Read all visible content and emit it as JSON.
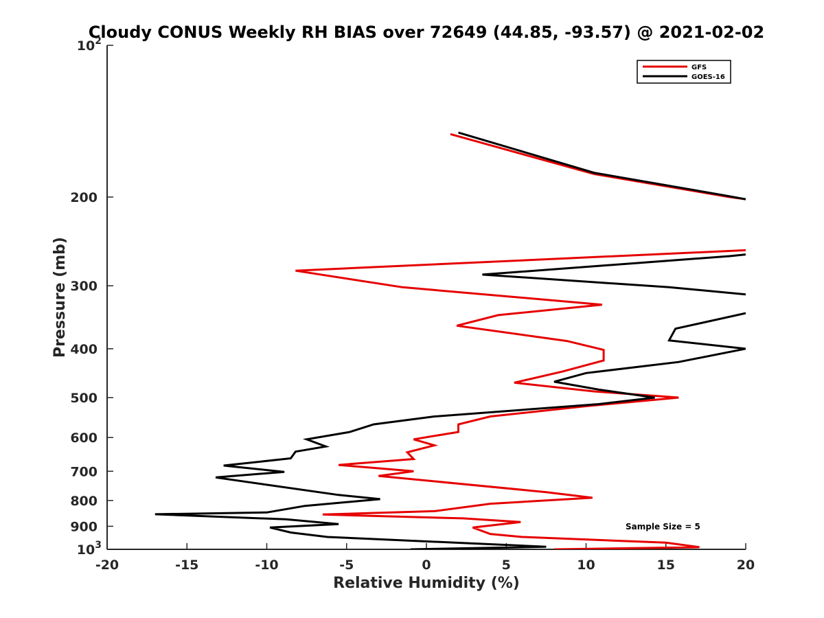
{
  "chart_data": {
    "type": "line",
    "title": "Cloudy CONUS Weekly RH BIAS over 72649 (44.85, -93.57) @ 2021-02-02",
    "xlabel": "Relative Humidity (%)",
    "ylabel": "Pressure (mb)",
    "xlim": [
      -20,
      20
    ],
    "ylim": [
      100,
      1000
    ],
    "y_scale": "log",
    "y_direction": "reversed",
    "grid": false,
    "legend_position": "top-right",
    "x_tick_labels": [
      "-20",
      "-15",
      "-10",
      "-5",
      "0",
      "5",
      "10",
      "15",
      "20"
    ],
    "y_tick_labels": [
      {
        "value": 100,
        "base": "10",
        "exp": "2"
      },
      {
        "value": 200,
        "label": "200"
      },
      {
        "value": 300,
        "label": "300"
      },
      {
        "value": 400,
        "label": "400"
      },
      {
        "value": 500,
        "label": "500"
      },
      {
        "value": 600,
        "label": "600"
      },
      {
        "value": 700,
        "label": "700"
      },
      {
        "value": 800,
        "label": "800"
      },
      {
        "value": 900,
        "label": "900"
      },
      {
        "value": 1000,
        "base": "10",
        "exp": "3"
      }
    ],
    "annotation": "Sample Size = 5",
    "series": [
      {
        "name": "GFS",
        "color": "#e60000",
        "points": [
          [
            1.5,
            150
          ],
          [
            10.5,
            180
          ],
          [
            19.0,
            200
          ],
          [
            20.0,
            202
          ],
          null,
          [
            20.0,
            255
          ],
          [
            -8.2,
            280
          ],
          [
            -1.5,
            302
          ],
          [
            11.0,
            327
          ],
          [
            4.5,
            343
          ],
          [
            1.9,
            360
          ],
          [
            8.8,
            386
          ],
          [
            11.1,
            402
          ],
          [
            11.1,
            422
          ],
          [
            8.5,
            444
          ],
          [
            5.5,
            467
          ],
          [
            10.5,
            486
          ],
          [
            15.8,
            500
          ],
          [
            10.0,
            520
          ],
          [
            4.0,
            545
          ],
          [
            2.0,
            565
          ],
          [
            2.0,
            585
          ],
          [
            -0.8,
            605
          ],
          [
            0.5,
            622
          ],
          [
            -1.2,
            642
          ],
          [
            -0.8,
            662
          ],
          [
            -5.5,
            680
          ],
          [
            -0.8,
            700
          ],
          [
            -3.0,
            715
          ],
          [
            7.5,
            770
          ],
          [
            10.4,
            790
          ],
          [
            4.0,
            812
          ],
          [
            0.5,
            840
          ],
          [
            -6.5,
            853
          ],
          [
            2.3,
            868
          ],
          [
            5.9,
            883
          ],
          [
            2.9,
            905
          ],
          [
            4.0,
            932
          ],
          [
            6.0,
            945
          ],
          [
            15.0,
            970
          ],
          [
            17.1,
            990
          ],
          [
            8.0,
            1000
          ]
        ]
      },
      {
        "name": "GOES-16",
        "color": "#000000",
        "points": [
          [
            2.0,
            149
          ],
          [
            10.5,
            179
          ],
          [
            18.5,
            198
          ],
          [
            20.0,
            202
          ],
          null,
          [
            20.0,
            260
          ],
          [
            19.0,
            262
          ],
          [
            3.5,
            285
          ],
          [
            15.2,
            302
          ],
          [
            20.0,
            312
          ],
          null,
          [
            20.0,
            340
          ],
          [
            15.6,
            365
          ],
          [
            15.2,
            385
          ],
          [
            20.0,
            400
          ],
          [
            15.8,
            425
          ],
          [
            10.0,
            447
          ],
          [
            8.0,
            465
          ],
          [
            10.8,
            482
          ],
          [
            14.3,
            500
          ],
          [
            10.8,
            515
          ],
          [
            0.5,
            545
          ],
          [
            -3.3,
            565
          ],
          [
            -4.8,
            585
          ],
          [
            -7.5,
            605
          ],
          [
            -6.3,
            625
          ],
          [
            -8.2,
            640
          ],
          [
            -8.5,
            660
          ],
          [
            -12.7,
            682
          ],
          [
            -8.9,
            702
          ],
          [
            -13.2,
            720
          ],
          [
            -5.5,
            780
          ],
          [
            -2.9,
            795
          ],
          [
            -7.6,
            820
          ],
          [
            -10.0,
            845
          ],
          [
            -17.0,
            852
          ],
          [
            -8.8,
            872
          ],
          [
            -5.5,
            891
          ],
          [
            -9.8,
            905
          ],
          [
            -8.5,
            926
          ],
          [
            -6.2,
            945
          ],
          [
            7.5,
            988
          ],
          [
            -1.0,
            1000
          ]
        ]
      }
    ]
  },
  "colors": {
    "axis": "#262626",
    "background": "#ffffff"
  }
}
